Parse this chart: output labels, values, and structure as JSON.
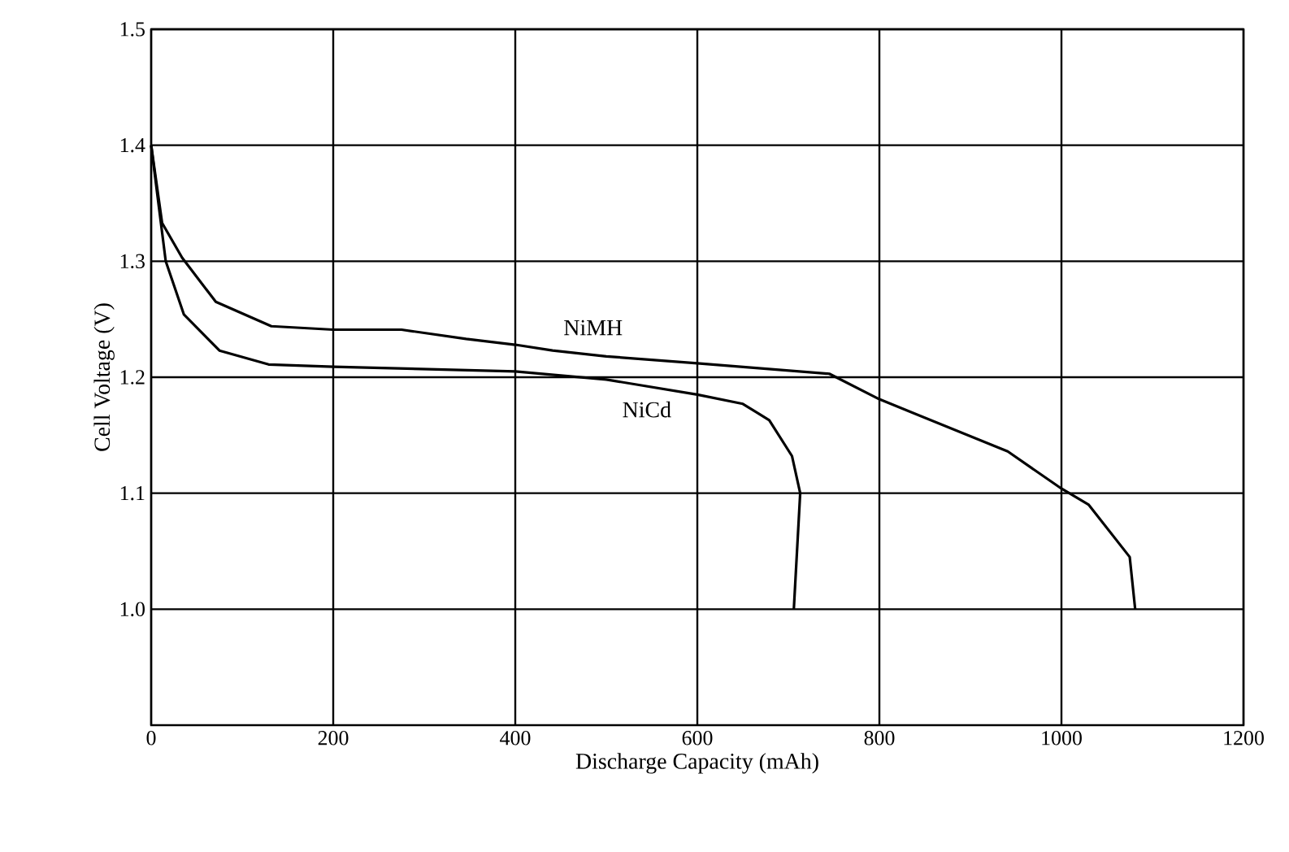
{
  "chart_data": {
    "type": "line",
    "xlabel": "Discharge Capacity (mAh)",
    "ylabel": "Cell Voltage (V)",
    "xlim": [
      0,
      1200
    ],
    "ylim": [
      0.9,
      1.5
    ],
    "xticks": [
      0,
      200,
      400,
      600,
      800,
      1000,
      1200
    ],
    "yticks": [
      {
        "value": 1.0,
        "label": "1.0"
      },
      1.1,
      1.2,
      1.3,
      1.4,
      1.5
    ],
    "grid": true,
    "marker": "none",
    "line_style": "solid",
    "legend": false,
    "series": [
      {
        "name": "NiMH",
        "color": "#000000",
        "x": [
          0,
          12,
          34,
          71,
          132,
          200,
          275,
          346,
          400,
          441,
          500,
          600,
          745,
          800,
          941,
          1000,
          1030,
          1075,
          1081
        ],
        "values": [
          1.4,
          1.333,
          1.303,
          1.265,
          1.244,
          1.241,
          1.241,
          1.233,
          1.228,
          1.223,
          1.218,
          1.212,
          1.203,
          1.181,
          1.136,
          1.104,
          1.09,
          1.045,
          1.0
        ]
      },
      {
        "name": "NiCd",
        "color": "#000000",
        "x": [
          0,
          7,
          16,
          36,
          75,
          129,
          200,
          400,
          500,
          600,
          650,
          679,
          704,
          713,
          706
        ],
        "values": [
          1.4,
          1.356,
          1.3,
          1.254,
          1.223,
          1.211,
          1.209,
          1.205,
          1.198,
          1.185,
          1.177,
          1.163,
          1.132,
          1.1,
          1.0
        ]
      }
    ]
  }
}
